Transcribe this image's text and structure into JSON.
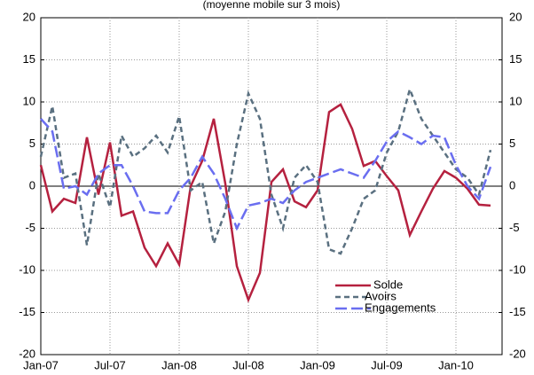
{
  "chart_data": {
    "type": "line",
    "subtitle": "(moyenne mobile sur 3 mois)",
    "categories": [
      "Jan-07",
      null,
      null,
      null,
      null,
      null,
      "Jul-07",
      null,
      null,
      null,
      null,
      null,
      "Jan-08",
      null,
      null,
      null,
      null,
      null,
      "Jul-08",
      null,
      null,
      null,
      null,
      null,
      "Jan-09",
      null,
      null,
      null,
      null,
      null,
      "Jul-09",
      null,
      null,
      null,
      null,
      null,
      "Jan-10",
      null,
      null,
      null
    ],
    "series": [
      {
        "name": "Solde",
        "color": "#b5213f",
        "style": "solid",
        "values": [
          2.5,
          -3,
          -1.5,
          -2,
          5.8,
          -1,
          5.2,
          -3.5,
          -3,
          -7.3,
          -9.5,
          -6.8,
          -9.3,
          0,
          3,
          8,
          0.3,
          -9.5,
          -13.5,
          -10.3,
          0.5,
          2,
          -1.8,
          -2.5,
          -0.5,
          8.8,
          9.7,
          6.8,
          2.4,
          3,
          1.2,
          -0.5,
          -5.8,
          -3,
          -0.3,
          1.8,
          1,
          -0.3,
          -2.2,
          -2.3
        ]
      },
      {
        "name": "Avoirs",
        "color": "#5a7080",
        "style": "dashed",
        "values": [
          3.5,
          9.5,
          1,
          1.5,
          -7,
          1.5,
          -2.5,
          6,
          3.5,
          4.5,
          6,
          4,
          8.3,
          -0.5,
          0.5,
          -6.8,
          -3,
          5,
          11,
          8,
          -1,
          -5,
          1,
          2.5,
          0.5,
          -7.5,
          -8,
          -5,
          -1.5,
          -0.5,
          4,
          6.5,
          11.5,
          8,
          6,
          4,
          2,
          1,
          -1,
          4.3
        ]
      },
      {
        "name": "Engagements",
        "color": "#6a6ef0",
        "style": "longdash",
        "values": [
          8,
          6.5,
          -0.3,
          0,
          -1,
          1.5,
          2.5,
          2.5,
          0,
          -3,
          -3.2,
          -3.2,
          -0.5,
          1,
          3.5,
          1.5,
          -1.5,
          -5,
          -2.3,
          -2,
          -1.5,
          -2,
          -0.5,
          0.5,
          1,
          1.5,
          2,
          1.5,
          1,
          3,
          5.3,
          6.5,
          5.8,
          5,
          6,
          5.8,
          2.5,
          0,
          -1.5,
          2.3
        ]
      }
    ],
    "ylim": [
      -20,
      20
    ],
    "yticks": [
      -20,
      -15,
      -10,
      -5,
      0,
      5,
      10,
      15,
      20
    ],
    "y2lim": [
      -20,
      20
    ],
    "y2ticks": [
      -20,
      -15,
      -10,
      -5,
      0,
      5,
      10,
      15,
      20
    ],
    "grid": true,
    "legend": "lower right"
  }
}
